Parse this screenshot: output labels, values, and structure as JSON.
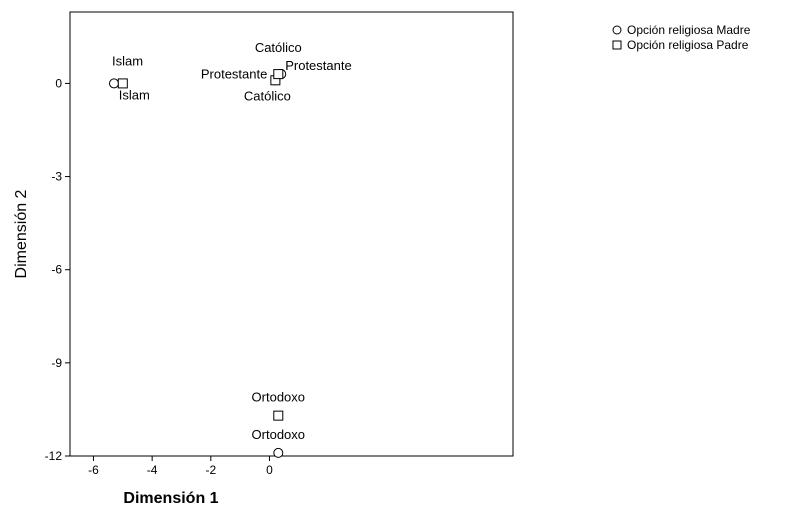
{
  "chart_data": {
    "type": "scatter",
    "xlabel": "Dimensión 1",
    "ylabel": "Dimensión 2",
    "xlim": [
      -6.8,
      8.3
    ],
    "ylim": [
      -12,
      2.3
    ],
    "x_ticks": [
      "-6",
      "-4",
      "-2",
      "0"
    ],
    "x_tick_values": [
      -6,
      -4,
      -2,
      0
    ],
    "y_ticks": [
      "0",
      "-3",
      "-6",
      "-9",
      "-12"
    ],
    "y_tick_values": [
      0,
      -3,
      -6,
      -9,
      -12
    ],
    "grid": false,
    "legend_position": "top-right",
    "series": [
      {
        "name": "Opción religiosa Madre",
        "marker": "circle",
        "points": [
          {
            "label": "Islam",
            "x": -5.3,
            "y": 0.0
          },
          {
            "label": "Católico",
            "x": 0.2,
            "y": 0.1
          },
          {
            "label": "Protestante",
            "x": 0.4,
            "y": 0.3
          },
          {
            "label": "Ortodoxo",
            "x": 0.3,
            "y": -11.9
          }
        ]
      },
      {
        "name": "Opción religiosa Padre",
        "marker": "square",
        "points": [
          {
            "label": "Islam",
            "x": -5.0,
            "y": 0.0
          },
          {
            "label": "Protestante",
            "x": 0.2,
            "y": 0.1
          },
          {
            "label": "Católico",
            "x": 0.3,
            "y": 0.3
          },
          {
            "label": "Ortodoxo",
            "x": 0.3,
            "y": -10.7
          }
        ]
      }
    ]
  }
}
